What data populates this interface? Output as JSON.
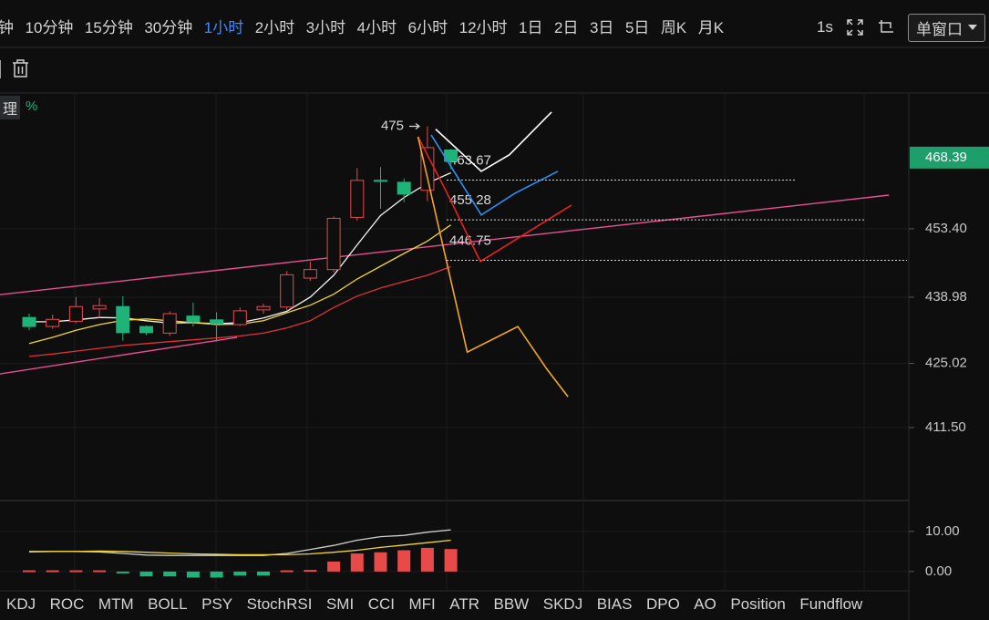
{
  "toolbar": {
    "intervals": [
      "钟",
      "10分钟",
      "15分钟",
      "30分钟",
      "1小时",
      "2小时",
      "3小时",
      "4小时",
      "6小时",
      "12小时",
      "1日",
      "2日",
      "3日",
      "5日",
      "周K",
      "月K"
    ],
    "active": 4,
    "speed": "1s",
    "window_mode": "单窗口"
  },
  "header": {
    "tag": "理",
    "change": "%"
  },
  "indicator_tabs": [
    "KDJ",
    "ROC",
    "MTM",
    "BOLL",
    "PSY",
    "StochRSI",
    "SMI",
    "CCI",
    "MFI",
    "ATR",
    "BBW",
    "SKDJ",
    "BIAS",
    "DPO",
    "AO",
    "Position",
    "Fundflow"
  ],
  "chart_data": [
    {
      "type": "candlestick",
      "ylim": [
        396.3,
        482.4
      ],
      "yticks": [
        {
          "value": 453.4,
          "label": "453.40"
        },
        438.98,
        425.02,
        {
          "value": 411.5,
          "label": "411.50"
        }
      ],
      "grid": true,
      "last_price": 468.39,
      "last_price_color": "#1e9e6a",
      "up_color": "#e84a4a",
      "down_color": "#1fb37a",
      "candles": {
        "open": [
          434.7,
          432.8,
          433.9,
          436.5,
          437.0,
          432.8,
          431.4,
          435.0,
          434.2,
          433.2,
          436.3,
          436.9,
          443.0,
          444.8,
          455.8,
          463.6,
          463.2,
          461.5,
          470.0
        ],
        "high": [
          435.5,
          435.3,
          439.0,
          438.8,
          439.2,
          433.0,
          436.0,
          437.8,
          435.8,
          436.8,
          437.6,
          444.5,
          446.5,
          456.0,
          466.2,
          466.4,
          464.0,
          475.0,
          470.2
        ],
        "low": [
          432.0,
          432.3,
          433.5,
          434.5,
          429.8,
          431.0,
          430.8,
          432.8,
          429.6,
          432.9,
          435.5,
          436.3,
          442.4,
          444.3,
          455.1,
          457.6,
          459.0,
          459.2,
          466.0
        ],
        "close": [
          432.8,
          434.3,
          437.0,
          437.2,
          431.5,
          431.5,
          435.5,
          433.8,
          433.4,
          436.1,
          437.0,
          443.7,
          444.8,
          455.6,
          463.6,
          463.4,
          460.7,
          470.5,
          467.6
        ]
      },
      "series": [
        {
          "color": "#f2f2f2",
          "values": [
            433.8,
            433.8,
            434.2,
            434.7,
            434.6,
            434.0,
            433.5,
            433.6,
            433.4,
            433.6,
            434.6,
            436.0,
            439.0,
            443.6,
            450.0,
            456.2,
            460.0,
            463.0,
            465.2
          ]
        },
        {
          "color": "#f0d43a",
          "values": [
            429.2,
            430.5,
            432.0,
            433.2,
            434.1,
            434.4,
            434.0,
            433.6,
            433.2,
            433.3,
            434.0,
            435.7,
            437.3,
            439.6,
            442.8,
            445.5,
            448.2,
            450.8,
            454.2
          ]
        },
        {
          "color": "#e0333a",
          "values": [
            426.5,
            427.0,
            427.6,
            428.2,
            428.8,
            429.2,
            429.6,
            430.0,
            430.4,
            430.8,
            431.4,
            432.5,
            434.0,
            436.8,
            439.2,
            440.9,
            442.3,
            443.6,
            445.4
          ]
        }
      ],
      "trendlines": [
        {
          "color": "#e8508f",
          "x": [
            -1.25,
            36.7
          ],
          "values": [
            439.5,
            460.5
          ]
        },
        {
          "color": "#e8508f",
          "x": [
            -1.25,
            8.87
          ],
          "values": [
            422.8,
            430.5
          ]
        }
      ],
      "drawings": [
        {
          "color": "#ffffff",
          "x": [
            17.35,
            19.3,
            20.5,
            22.3
          ],
          "values": [
            474.4,
            465.5,
            469.0,
            478.0
          ]
        },
        {
          "color": "#2e8ff0",
          "x": [
            17.16,
            19.3,
            20.74,
            22.57
          ],
          "values": [
            473.2,
            456.3,
            460.9,
            465.5
          ]
        },
        {
          "color": "#e8231f",
          "x": [
            16.6,
            17.8,
            19.26,
            23.15
          ],
          "values": [
            472.8,
            461.3,
            446.5,
            458.4
          ]
        },
        {
          "color": "#f5a623",
          "x": [
            16.6,
            18.7,
            20.86,
            22.1,
            23.0
          ],
          "values": [
            472.8,
            427.4,
            432.8,
            423.8,
            418.0
          ]
        }
      ],
      "levels": [
        463.67,
        455.28,
        446.75
      ],
      "annotation": 475
    },
    {
      "type": "macd",
      "ylim": [
        -4.8,
        17
      ],
      "yticks": [
        {
          "value": 10,
          "label": "10.00"
        },
        {
          "value": 0,
          "label": "0.00"
        }
      ],
      "up_color": "#e84a4a",
      "down_color": "#1fb37a",
      "histogram": [
        0.3,
        0.3,
        0.3,
        0.3,
        -0.4,
        -1.2,
        -1.2,
        -1.5,
        -1.5,
        -1.0,
        -1.0,
        0.3,
        0.4,
        2.5,
        4.5,
        4.8,
        5.3,
        5.9,
        5.6
      ],
      "series": [
        {
          "color": "#cfcfcf",
          "values": [
            5.0,
            5.0,
            5.0,
            4.9,
            4.5,
            4.1,
            4.0,
            4.0,
            4.0,
            4.0,
            4.0,
            4.5,
            5.5,
            6.5,
            7.8,
            8.7,
            9.0,
            9.8,
            10.4
          ]
        },
        {
          "color": "#f0d43a",
          "values": [
            4.9,
            5.0,
            5.0,
            5.1,
            5.0,
            4.8,
            4.6,
            4.4,
            4.3,
            4.2,
            4.2,
            4.2,
            4.4,
            4.8,
            5.3,
            6.0,
            6.6,
            7.2,
            7.8
          ]
        }
      ]
    }
  ]
}
